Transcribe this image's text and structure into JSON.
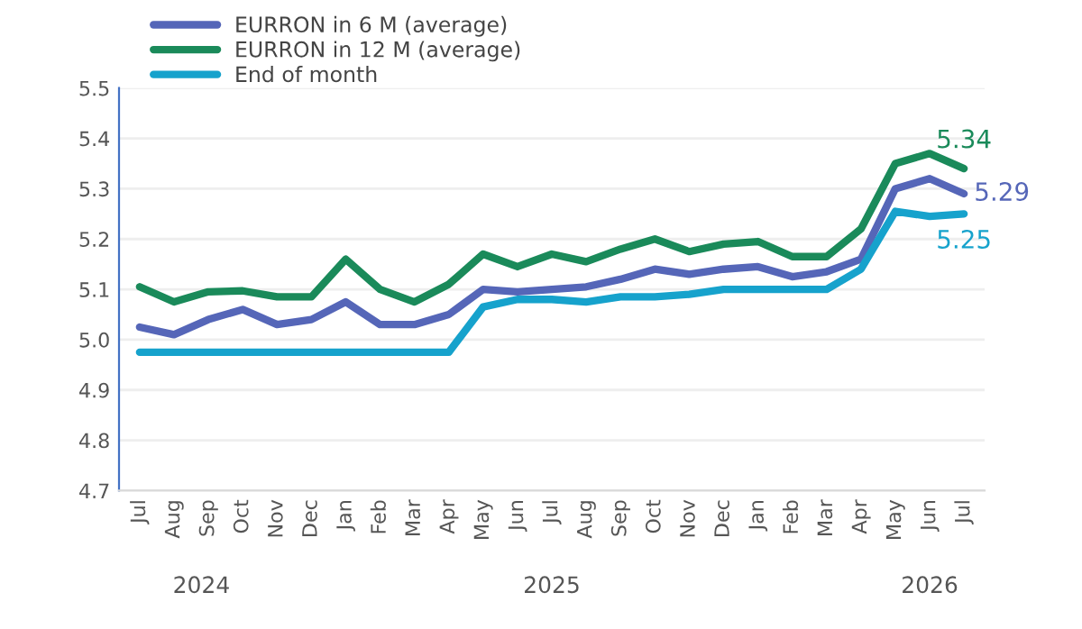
{
  "chart_data": {
    "type": "line",
    "categories": [
      "Jul",
      "Aug",
      "Sep",
      "Oct",
      "Nov",
      "Dec",
      "Jan",
      "Feb",
      "Mar",
      "Apr",
      "May",
      "Jun",
      "Jul",
      "Aug",
      "Sep",
      "Oct",
      "Nov",
      "Dec",
      "Jan",
      "Feb",
      "Mar",
      "Apr",
      "May",
      "Jun",
      "Jul"
    ],
    "series": [
      {
        "name": "EURRON in 6 M (average)",
        "color": "#5566b8",
        "values": [
          5.025,
          5.01,
          5.04,
          5.06,
          5.03,
          5.04,
          5.075,
          5.03,
          5.03,
          5.05,
          5.1,
          5.095,
          5.1,
          5.105,
          5.12,
          5.14,
          5.13,
          5.14,
          5.145,
          5.125,
          5.135,
          5.16,
          5.3,
          5.32,
          5.29
        ],
        "value_labels": [
          null,
          null,
          null,
          null,
          null,
          null,
          null,
          null,
          null,
          null,
          null,
          null,
          null,
          null,
          null,
          null,
          null,
          null,
          null,
          null,
          null,
          null,
          null,
          null,
          "5.29"
        ]
      },
      {
        "name": "EURRON in 12 M (average)",
        "color": "#1a8a5a",
        "values": [
          5.105,
          5.075,
          5.095,
          5.097,
          5.085,
          5.085,
          5.16,
          5.1,
          5.075,
          5.11,
          5.17,
          5.145,
          5.17,
          5.155,
          5.18,
          5.2,
          5.175,
          5.19,
          5.195,
          5.165,
          5.165,
          5.22,
          5.35,
          5.37,
          5.34
        ],
        "value_labels": [
          null,
          null,
          null,
          null,
          null,
          null,
          null,
          null,
          null,
          null,
          null,
          null,
          null,
          null,
          null,
          null,
          null,
          null,
          null,
          null,
          null,
          null,
          null,
          null,
          "5.34"
        ]
      },
      {
        "name": "End of month",
        "color": "#16a2cc",
        "values": [
          4.975,
          4.975,
          4.975,
          4.975,
          4.975,
          4.975,
          4.975,
          4.975,
          4.975,
          4.975,
          5.065,
          5.08,
          5.08,
          5.075,
          5.085,
          5.085,
          5.09,
          5.1,
          5.1,
          5.1,
          5.1,
          5.14,
          5.255,
          5.245,
          5.25
        ],
        "value_labels": [
          null,
          null,
          null,
          null,
          null,
          null,
          null,
          null,
          null,
          null,
          null,
          null,
          null,
          null,
          null,
          null,
          null,
          null,
          null,
          null,
          null,
          null,
          null,
          null,
          "5.25"
        ]
      }
    ],
    "ylim": [
      4.7,
      5.5
    ],
    "yticks": [
      4.7,
      4.8,
      4.9,
      {
        "value": 5.0,
        "label": "5.0"
      },
      5.1,
      5.2,
      5.3,
      5.4,
      5.5
    ],
    "annotations": [
      "2024",
      "2025",
      "2026"
    ],
    "grid": "y",
    "legend": "top left",
    "marker": "none",
    "line_style": "solid"
  }
}
